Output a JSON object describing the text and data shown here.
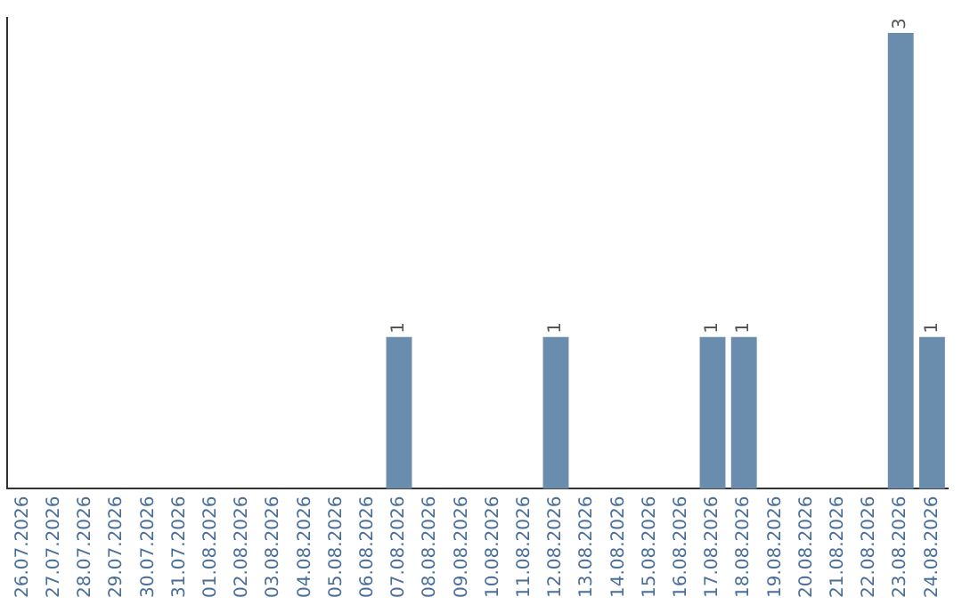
{
  "chart_data": {
    "type": "bar",
    "categories": [
      "26.07.2026",
      "27.07.2026",
      "28.07.2026",
      "29.07.2026",
      "30.07.2026",
      "31.07.2026",
      "01.08.2026",
      "02.08.2026",
      "03.08.2026",
      "04.08.2026",
      "05.08.2026",
      "06.08.2026",
      "07.08.2026",
      "08.08.2026",
      "09.08.2026",
      "10.08.2026",
      "11.08.2026",
      "12.08.2026",
      "13.08.2026",
      "14.08.2026",
      "15.08.2026",
      "16.08.2026",
      "17.08.2026",
      "18.08.2026",
      "19.08.2026",
      "20.08.2026",
      "21.08.2026",
      "22.08.2026",
      "23.08.2026",
      "24.08.2026"
    ],
    "values": [
      null,
      null,
      null,
      null,
      null,
      null,
      null,
      null,
      null,
      null,
      null,
      null,
      1,
      null,
      null,
      null,
      null,
      1,
      null,
      null,
      null,
      null,
      1,
      1,
      null,
      null,
      null,
      null,
      3,
      1
    ],
    "data_labels": true,
    "color": "#6a8cad",
    "ylim": [
      0,
      3.1
    ],
    "tick_labels": "x",
    "grid": false,
    "legend": false
  }
}
